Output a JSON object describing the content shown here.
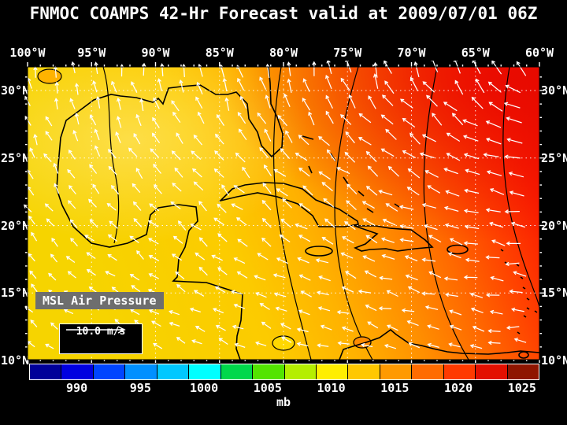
{
  "title": "FNMOC COAMPS 42-Hr Forecast valid at 2009/07/01 06Z",
  "axes": {
    "lon_labels": [
      "100°W",
      "95°W",
      "90°W",
      "85°W",
      "80°W",
      "75°W",
      "70°W",
      "65°W",
      "60°W"
    ],
    "lat_labels": [
      "30°N",
      "25°N",
      "20°N",
      "15°N",
      "10°N"
    ]
  },
  "overlays": {
    "field_label": "MSL Air Pressure",
    "wind_scale_label": "10.0 m/s"
  },
  "colorbar": {
    "unit": "mb",
    "tick_labels": [
      "990",
      "995",
      "1000",
      "1005",
      "1010",
      "1015",
      "1020",
      "1025"
    ],
    "segment_colors": [
      "#000099",
      "#0000e0",
      "#0045ff",
      "#0090ff",
      "#00c8ff",
      "#00ffff",
      "#00d84b",
      "#53e400",
      "#b5ee00",
      "#ffee00",
      "#ffc800",
      "#ff9a00",
      "#ff6c00",
      "#ff3a00",
      "#e31000",
      "#8f1500"
    ]
  }
}
